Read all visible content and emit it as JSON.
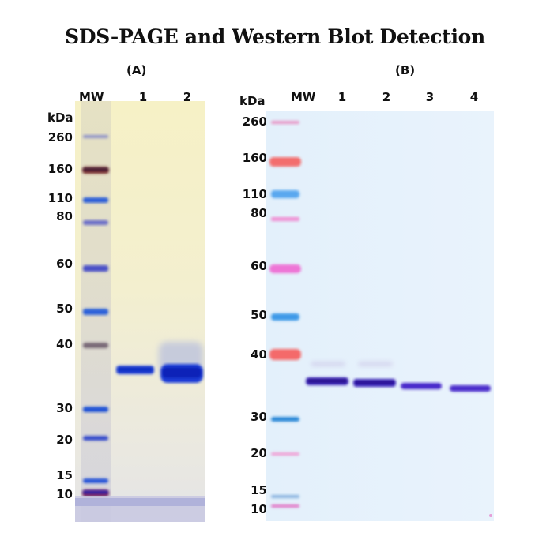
{
  "title": "SDS-PAGE and Western Blot Detection",
  "panel_a": {
    "label": "(A)",
    "unit": "kDa",
    "mw_header": "MW",
    "lanes": [
      "1",
      "2"
    ],
    "markers": [
      "260",
      "160",
      "110",
      "80",
      "60",
      "50",
      "40",
      "30",
      "20",
      "15",
      "10"
    ]
  },
  "panel_b": {
    "label": "(B)",
    "unit": "kDa",
    "mw_header": "MW",
    "lanes": [
      "1",
      "2",
      "3",
      "4"
    ],
    "markers": [
      "260",
      "160",
      "110",
      "80",
      "60",
      "50",
      "40",
      "30",
      "20",
      "15",
      "10"
    ]
  },
  "colors": {
    "gel_a_top": "#f4efc3",
    "gel_a_bottom": "#e8e6e2",
    "gel_b": "#e6f2fb",
    "stain_blue": "#1a3fd6",
    "ladder_violet": "#5a4fd0",
    "ladder_red": "#f05a5a",
    "ladder_pink": "#e078d8"
  }
}
